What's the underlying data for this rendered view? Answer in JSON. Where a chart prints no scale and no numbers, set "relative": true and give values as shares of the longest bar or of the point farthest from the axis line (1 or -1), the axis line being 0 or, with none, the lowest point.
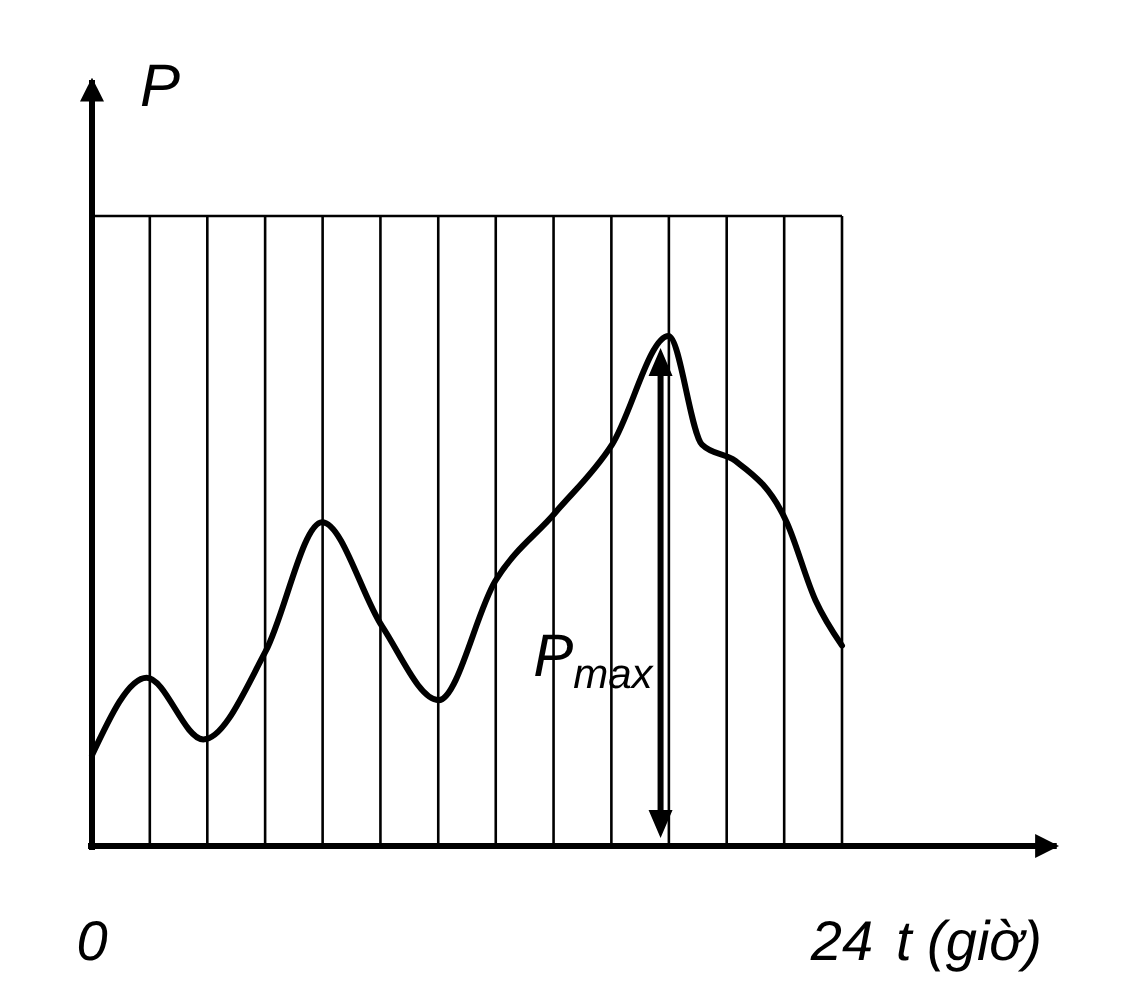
{
  "chart_data": {
    "type": "line",
    "relative": true,
    "xlabel": "t (giờ)",
    "ylabel": "P",
    "xlim": [
      0,
      31
    ],
    "xticks": [
      0,
      {
        "value": 1.85,
        "label": null
      },
      {
        "value": 3.69,
        "label": null
      },
      {
        "value": 5.54,
        "label": null
      },
      {
        "value": 7.38,
        "label": null
      },
      {
        "value": 9.23,
        "label": null
      },
      {
        "value": 11.08,
        "label": null
      },
      {
        "value": 12.92,
        "label": null
      },
      {
        "value": 14.77,
        "label": null
      },
      {
        "value": 16.62,
        "label": null
      },
      {
        "value": 18.46,
        "label": null
      },
      {
        "value": 20.31,
        "label": null
      },
      {
        "value": 22.15,
        "label": null
      },
      24
    ],
    "grid": "x",
    "annotations": [
      "P$_{max}$"
    ],
    "x": [
      0,
      1.75,
      3.56,
      5.55,
      7.36,
      9.28,
      11.09,
      12.91,
      14.83,
      16.64,
      18.45,
      19.52,
      20.59,
      22.23,
      23.15,
      24
    ],
    "series": [
      {
        "color": "#000000",
        "values": [
          0.178,
          0.33,
          0.209,
          0.381,
          0.635,
          0.431,
          0.286,
          0.52,
          0.654,
          0.787,
          1.0,
          0.787,
          0.755,
          0.635,
          0.482,
          0.393
        ]
      }
    ]
  }
}
